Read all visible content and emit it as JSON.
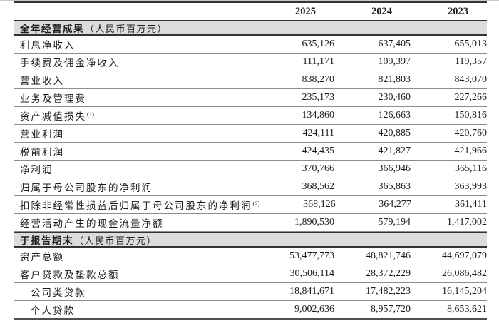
{
  "colors": {
    "heavy_rule": "#333333",
    "light_rule": "#8d8d8d",
    "section_band": "#dcdcdc",
    "text": "#1c1c1c",
    "page_top_edge": "#c9c9c9"
  },
  "table": {
    "columns": [
      "2025",
      "2024",
      "2023"
    ],
    "sections": [
      {
        "title": "全年经营成果",
        "unit": "（人民币百万元）",
        "rows": [
          {
            "label": "利息净收入",
            "values": [
              "635,126",
              "637,405",
              "655,013"
            ]
          },
          {
            "label": "手续费及佣金净收入",
            "values": [
              "111,171",
              "109,397",
              "119,357"
            ]
          },
          {
            "label": "营业收入",
            "values": [
              "838,270",
              "821,803",
              "843,070"
            ]
          },
          {
            "label": "业务及管理费",
            "values": [
              "235,173",
              "230,460",
              "227,266"
            ]
          },
          {
            "label": "资产减值损失",
            "sup": "(1)",
            "values": [
              "134,860",
              "126,663",
              "150,816"
            ]
          },
          {
            "label": "营业利润",
            "values": [
              "424,111",
              "420,885",
              "420,760"
            ]
          },
          {
            "label": "税前利润",
            "values": [
              "424,435",
              "421,827",
              "421,966"
            ]
          },
          {
            "label": "净利润",
            "values": [
              "370,766",
              "366,946",
              "365,116"
            ]
          },
          {
            "label": "归属于母公司股东的净利润",
            "values": [
              "368,562",
              "365,863",
              "363,993"
            ]
          },
          {
            "label": "扣除非经常性损益后归属于母公司股东的净利润",
            "sup": "(2)",
            "values": [
              "368,126",
              "364,277",
              "361,411"
            ]
          },
          {
            "label": "经营活动产生的现金流量净额",
            "values": [
              "1,890,530",
              "579,194",
              "1,417,002"
            ]
          }
        ]
      },
      {
        "title": "于报告期末",
        "unit": "（人民币百万元）",
        "rows": [
          {
            "label": "资产总额",
            "values": [
              "53,477,773",
              "48,821,746",
              "44,697,079"
            ]
          },
          {
            "label": "客户贷款及垫款总额",
            "values": [
              "30,506,114",
              "28,372,229",
              "26,086,482"
            ]
          },
          {
            "label": "公司类贷款",
            "indent": true,
            "values": [
              "18,841,671",
              "17,482,223",
              "16,145,204"
            ]
          },
          {
            "label": "个人贷款",
            "indent": true,
            "values": [
              "9,002,636",
              "8,957,720",
              "8,653,621"
            ]
          }
        ]
      }
    ]
  }
}
